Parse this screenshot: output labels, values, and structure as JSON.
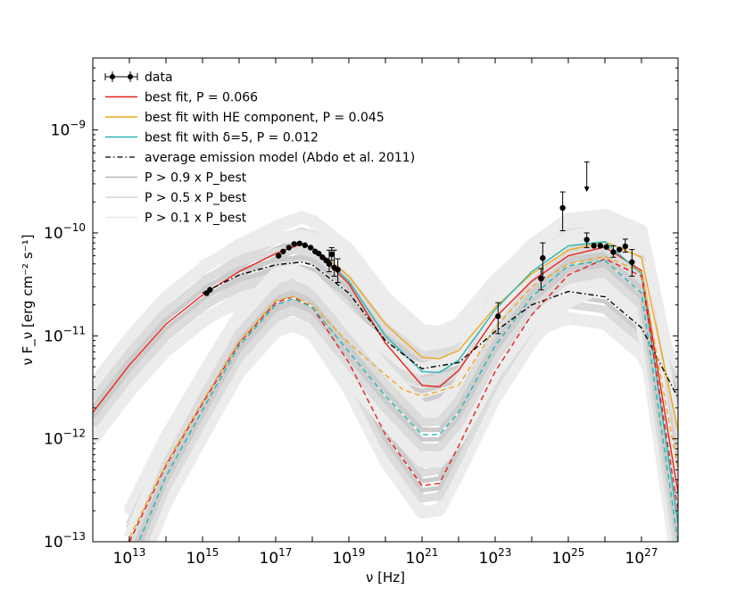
{
  "chart_data": {
    "type": "line",
    "title": "",
    "xlabel": "ν [Hz]",
    "ylabel": "ν F_ν [erg cm⁻² s⁻¹]",
    "xscale": "log",
    "yscale": "log",
    "xlim": [
      1000000000000.0,
      1e+28
    ],
    "ylim": [
      1e-13,
      5e-09
    ],
    "x_ticks": [
      {
        "base": "10",
        "exp": "13",
        "value": 10000000000000.0
      },
      {
        "base": "10",
        "exp": "15",
        "value": 1000000000000000.0
      },
      {
        "base": "10",
        "exp": "17",
        "value": 1e+17
      },
      {
        "base": "10",
        "exp": "19",
        "value": 1e+19
      },
      {
        "base": "10",
        "exp": "21",
        "value": 1e+21
      },
      {
        "base": "10",
        "exp": "23",
        "value": 1e+23
      },
      {
        "base": "10",
        "exp": "25",
        "value": 1e+25
      },
      {
        "base": "10",
        "exp": "27",
        "value": 1e+27
      }
    ],
    "y_ticks": [
      {
        "base": "10",
        "exp": "−13",
        "value": 1e-13
      },
      {
        "base": "10",
        "exp": "−12",
        "value": 1e-12
      },
      {
        "base": "10",
        "exp": "−11",
        "value": 1e-11
      },
      {
        "base": "10",
        "exp": "−10",
        "value": 1e-10
      },
      {
        "base": "10",
        "exp": "−9",
        "value": 1e-09
      }
    ],
    "legend": {
      "placement": "top-left",
      "entries": [
        {
          "label": "data",
          "style": "errorbar",
          "color": "#000000"
        },
        {
          "label": "best fit, P = 0.066",
          "style": "solid",
          "color": "#e8201c"
        },
        {
          "label": "best fit with HE component, P = 0.045",
          "style": "solid",
          "color": "#f0a81e"
        },
        {
          "label": "best fit with δ=5, P = 0.012",
          "style": "solid",
          "color": "#26b6b3"
        },
        {
          "label": "average emission model (Abdo et al. 2011)",
          "style": "dashdot",
          "color": "#000000"
        },
        {
          "label": "P > 0.9 x P_best",
          "style": "solid",
          "color": "#b3b3b3"
        },
        {
          "label": "P > 0.5 x P_best",
          "style": "solid",
          "color": "#d6d6d6"
        },
        {
          "label": "P > 0.1 x P_best",
          "style": "solid",
          "color": "#ececec"
        }
      ]
    },
    "series": [
      {
        "name": "best fit, P = 0.066",
        "color": "#e8201c",
        "dash": "solid",
        "points": [
          [
            1000000000000.0,
            1.8e-12
          ],
          [
            10000000000000.0,
            5.2e-12
          ],
          [
            100000000000000.0,
            1.3e-11
          ],
          [
            1000000000000000.0,
            2.5e-11
          ],
          [
            1e+16,
            4.2e-11
          ],
          [
            1e+17,
            6.3e-11
          ],
          [
            5e+17,
            7.8e-11
          ],
          [
            1e+18,
            7.2e-11
          ],
          [
            1e+19,
            3.2e-11
          ],
          [
            1e+20,
            8.5e-12
          ],
          [
            1e+21,
            3.3e-12
          ],
          [
            3e+21,
            3.2e-12
          ],
          [
            1e+22,
            4.6e-12
          ],
          [
            1e+23,
            1.5e-11
          ],
          [
            1e+24,
            3.4e-11
          ],
          [
            1e+25,
            6e-11
          ],
          [
            1e+26,
            7.3e-11
          ],
          [
            1e+27,
            4.3e-11
          ],
          [
            1e+28,
            3e-13
          ]
        ]
      },
      {
        "name": "best fit with HE component, P = 0.045",
        "color": "#f0a81e",
        "dash": "solid",
        "points": [
          [
            1e+18,
            7.3e-11
          ],
          [
            1e+19,
            3.8e-11
          ],
          [
            1e+20,
            1.3e-11
          ],
          [
            1e+21,
            6.2e-12
          ],
          [
            3e+21,
            6e-12
          ],
          [
            1e+22,
            7.2e-12
          ],
          [
            1e+23,
            1.9e-11
          ],
          [
            1e+24,
            4e-11
          ],
          [
            1e+25,
            6.8e-11
          ],
          [
            1e+26,
            8.2e-11
          ],
          [
            1e+27,
            5.8e-11
          ],
          [
            1e+28,
            1.2e-12
          ]
        ]
      },
      {
        "name": "best fit with δ=5, P = 0.012",
        "color": "#26b6b3",
        "dash": "solid",
        "points": [
          [
            1e+18,
            7.3e-11
          ],
          [
            1e+19,
            3.4e-11
          ],
          [
            1e+20,
            1e-11
          ],
          [
            1e+21,
            4.5e-12
          ],
          [
            3e+21,
            4.4e-12
          ],
          [
            1e+22,
            5.8e-12
          ],
          [
            1e+23,
            1.8e-11
          ],
          [
            1e+24,
            4.2e-11
          ],
          [
            1e+25,
            7.5e-11
          ],
          [
            1e+26,
            8.2e-11
          ],
          [
            1e+27,
            4e-11
          ],
          [
            1e+28,
            1.5e-13
          ]
        ]
      },
      {
        "name": "average emission model (Abdo et al. 2011)",
        "color": "#000000",
        "dash": "dashdot",
        "points": [
          [
            1000000000000000.0,
            2.6e-11
          ],
          [
            1e+16,
            3.9e-11
          ],
          [
            1e+17,
            4.9e-11
          ],
          [
            5e+17,
            5.2e-11
          ],
          [
            1e+18,
            4.9e-11
          ],
          [
            1e+19,
            2.6e-11
          ],
          [
            1e+20,
            9e-12
          ],
          [
            1e+21,
            4.8e-12
          ],
          [
            1e+22,
            5.5e-12
          ],
          [
            1e+23,
            1.1e-11
          ],
          [
            1e+24,
            2e-11
          ],
          [
            1e+25,
            2.7e-11
          ],
          [
            1e+26,
            2.4e-11
          ],
          [
            1e+27,
            1.2e-11
          ],
          [
            1e+28,
            2.5e-12
          ]
        ]
      },
      {
        "name": "best fit SSC component (dashed)",
        "color": "#e8201c",
        "dash": "dashed",
        "points": [
          [
            10000000000000.0,
            1e-13
          ],
          [
            100000000000000.0,
            5.5e-13
          ],
          [
            1000000000000000.0,
            2.2e-12
          ],
          [
            1e+16,
            8.5e-12
          ],
          [
            1e+17,
            2.1e-11
          ],
          [
            3e+17,
            2.4e-11
          ],
          [
            1e+18,
            1.9e-11
          ],
          [
            1e+19,
            5.5e-12
          ],
          [
            1e+20,
            1.1e-12
          ],
          [
            1e+21,
            3.5e-13
          ],
          [
            3e+21,
            3.7e-13
          ],
          [
            1e+22,
            8.5e-13
          ],
          [
            1e+23,
            4.5e-12
          ],
          [
            1e+24,
            1.6e-11
          ],
          [
            1e+25,
            3.9e-11
          ],
          [
            1e+26,
            5.6e-11
          ],
          [
            1e+27,
            3.8e-11
          ],
          [
            1e+28,
            2e-13
          ]
        ]
      },
      {
        "name": "HE component SSC (dashed)",
        "color": "#f0a81e",
        "dash": "dashed",
        "points": [
          [
            10000000000000.0,
            1.1e-13
          ],
          [
            100000000000000.0,
            5.7e-13
          ],
          [
            1000000000000000.0,
            2.3e-12
          ],
          [
            1e+16,
            8.7e-12
          ],
          [
            1e+17,
            2.2e-11
          ],
          [
            3e+17,
            2.4e-11
          ],
          [
            1e+18,
            2e-11
          ],
          [
            1e+19,
            8.5e-12
          ],
          [
            1e+20,
            4.2e-12
          ],
          [
            3e+20,
            3e-12
          ],
          [
            1e+21,
            2.6e-12
          ],
          [
            1e+22,
            3.3e-12
          ],
          [
            1e+23,
            1.2e-11
          ],
          [
            1e+24,
            3e-11
          ],
          [
            1e+25,
            5e-11
          ],
          [
            1e+26,
            5.9e-11
          ],
          [
            1e+27,
            4.2e-11
          ],
          [
            1e+28,
            5e-13
          ]
        ]
      },
      {
        "name": "δ=5 SSC component (dashed)",
        "color": "#26b6b3",
        "dash": "dashed",
        "points": [
          [
            10000000000000.0,
            6e-14
          ],
          [
            100000000000000.0,
            4.3e-13
          ],
          [
            1000000000000000.0,
            1.9e-12
          ],
          [
            1e+16,
            8e-12
          ],
          [
            1e+17,
            2e-11
          ],
          [
            3e+17,
            2.3e-11
          ],
          [
            1e+18,
            1.9e-11
          ],
          [
            1e+19,
            7e-12
          ],
          [
            1e+20,
            2.6e-12
          ],
          [
            1e+21,
            1.1e-12
          ],
          [
            3e+21,
            1.1e-12
          ],
          [
            1e+22,
            1.8e-12
          ],
          [
            1e+23,
            8e-12
          ],
          [
            1e+24,
            2.4e-11
          ],
          [
            1e+25,
            4.8e-11
          ],
          [
            1e+26,
            5.4e-11
          ],
          [
            1e+27,
            2.6e-11
          ],
          [
            1e+28,
            1e-13
          ]
        ]
      }
    ],
    "data_points": [
      {
        "x": 1300000000000000.0,
        "y": 2.6e-11
      },
      {
        "x": 1600000000000000.0,
        "y": 2.8e-11
      },
      {
        "x": 1.2e+17,
        "y": 6e-11
      },
      {
        "x": 1.6e+17,
        "y": 6.6e-11
      },
      {
        "x": 2.3e+17,
        "y": 7.2e-11
      },
      {
        "x": 3.2e+17,
        "y": 7.8e-11
      },
      {
        "x": 4.5e+17,
        "y": 7.9e-11
      },
      {
        "x": 6.3e+17,
        "y": 7.6e-11
      },
      {
        "x": 9e+17,
        "y": 7.2e-11
      },
      {
        "x": 1.2e+18,
        "y": 6.6e-11
      },
      {
        "x": 1.5e+18,
        "y": 6.3e-11
      },
      {
        "x": 1.9e+18,
        "y": 5.8e-11
      },
      {
        "x": 2.4e+18,
        "y": 5.4e-11
      },
      {
        "x": 2.9e+18,
        "y": 5e-11,
        "yerr": [
          4.2e-11,
          6.8e-11
        ]
      },
      {
        "x": 3.4e+18,
        "y": 6.2e-11,
        "yerr": [
          5.4e-11,
          7.2e-11
        ]
      },
      {
        "x": 4e+18,
        "y": 4.6e-11,
        "yerr": [
          3.8e-11,
          6.8e-11
        ]
      },
      {
        "x": 5e+18,
        "y": 4.4e-11,
        "yerr": [
          3.3e-11,
          5.6e-11
        ]
      },
      {
        "x": 1.2e+23,
        "y": 1.55e-11,
        "yerr": [
          1.05e-11,
          2.1e-11
        ]
      },
      {
        "x": 1.8e+24,
        "y": 3.6e-11,
        "yerr": [
          2.8e-11,
          4.5e-11
        ]
      },
      {
        "x": 1.8e+24,
        "y": 3.6e-11
      },
      {
        "x": 2e+24,
        "y": 5.7e-11,
        "yerr": [
          3.7e-11,
          8e-11
        ]
      },
      {
        "x": 7e+24,
        "y": 1.75e-10,
        "yerr": [
          1.05e-10,
          2.5e-10
        ]
      },
      {
        "x": 3.2e+25,
        "y": 8.6e-11,
        "yerr": [
          7.2e-11,
          1e-10
        ]
      },
      {
        "x": 5e+25,
        "y": 7.5e-11
      },
      {
        "x": 7.5e+25,
        "y": 7.5e-11
      },
      {
        "x": 1.1e+26,
        "y": 7.3e-11
      },
      {
        "x": 1.7e+26,
        "y": 6.5e-11,
        "yerr": [
          5.8e-11,
          7.5e-11
        ]
      },
      {
        "x": 2.5e+26,
        "y": 6.9e-11
      },
      {
        "x": 3.6e+26,
        "y": 7.4e-11,
        "yerr": [
          6.5e-11,
          8.7e-11
        ]
      },
      {
        "x": 5.5e+26,
        "y": 5.2e-11,
        "yerr": [
          3.8e-11,
          6.9e-11
        ]
      }
    ],
    "upper_limits": [
      {
        "x": 3.2e+25,
        "y": 4.9e-10,
        "lower_to": 2.5e-10
      }
    ]
  }
}
